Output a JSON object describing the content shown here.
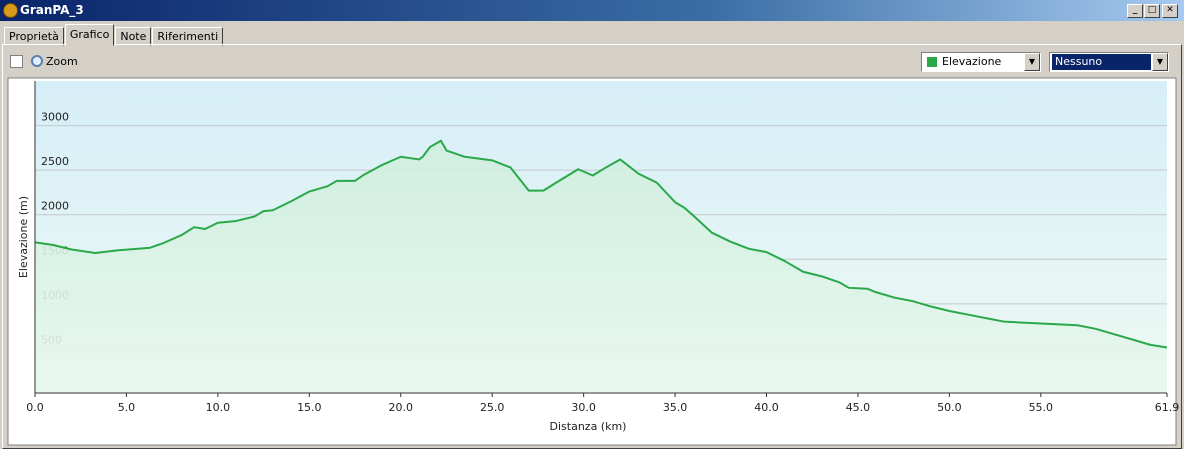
{
  "window": {
    "title": "GranPA_3"
  },
  "tabs": {
    "items": [
      "Proprietà",
      "Grafico",
      "Note",
      "Riferimenti"
    ],
    "active": 1
  },
  "toolbar": {
    "zoom": "Zoom",
    "series_select": "Elevazione",
    "second_select": "Nessuno"
  },
  "chart_data": {
    "type": "line",
    "x_label": "Distanza  (km)",
    "y_label": "Elevazione (m)",
    "x": [
      0,
      1,
      2,
      3.3,
      4.5,
      6.3,
      7,
      8,
      8.7,
      9.3,
      10,
      11,
      12,
      12.5,
      13,
      14,
      15,
      16,
      16.5,
      17.5,
      18,
      19,
      20,
      21,
      21.2,
      21.6,
      22.2,
      22.5,
      23.5,
      25,
      26,
      27,
      27.8,
      28.5,
      29.7,
      30.5,
      31.3,
      32,
      33,
      34,
      35,
      35.5,
      36,
      37,
      38,
      39,
      40,
      41,
      42,
      43,
      44,
      44.5,
      45.5,
      46,
      47,
      48,
      49,
      50,
      51,
      52,
      53,
      54,
      55,
      56,
      57,
      58,
      59,
      60,
      61,
      61.9
    ],
    "values": [
      1690,
      1660,
      1610,
      1570,
      1600,
      1630,
      1680,
      1770,
      1860,
      1840,
      1910,
      1930,
      1980,
      2040,
      2050,
      2150,
      2260,
      2320,
      2380,
      2380,
      2450,
      2560,
      2650,
      2620,
      2650,
      2760,
      2830,
      2720,
      2650,
      2610,
      2530,
      2270,
      2270,
      2360,
      2510,
      2440,
      2540,
      2620,
      2460,
      2360,
      2140,
      2080,
      1990,
      1800,
      1700,
      1620,
      1580,
      1480,
      1360,
      1310,
      1240,
      1180,
      1170,
      1130,
      1070,
      1030,
      970,
      920,
      880,
      840,
      800,
      790,
      780,
      770,
      760,
      720,
      660,
      600,
      540,
      510
    ],
    "color": "#2aa84a",
    "xlim": [
      0,
      61.9
    ],
    "xticks": [
      {
        "value": 0,
        "label": "0.0"
      },
      {
        "value": 5,
        "label": "5.0"
      },
      {
        "value": 10,
        "label": "10.0"
      },
      {
        "value": 15,
        "label": "15.0"
      },
      {
        "value": 20,
        "label": "20.0"
      },
      {
        "value": 25,
        "label": "25.0"
      },
      {
        "value": 30,
        "label": "30.0"
      },
      {
        "value": 35,
        "label": "35.0"
      },
      {
        "value": 40,
        "label": "40.0"
      },
      {
        "value": 45,
        "label": "45.0"
      },
      {
        "value": 50,
        "label": "50.0"
      },
      {
        "value": 55,
        "label": "55.0"
      },
      61.9
    ],
    "ylim": [
      0,
      3500
    ],
    "yticks": [
      500,
      1000,
      1500,
      2000,
      2500,
      3000
    ],
    "grid": true
  }
}
